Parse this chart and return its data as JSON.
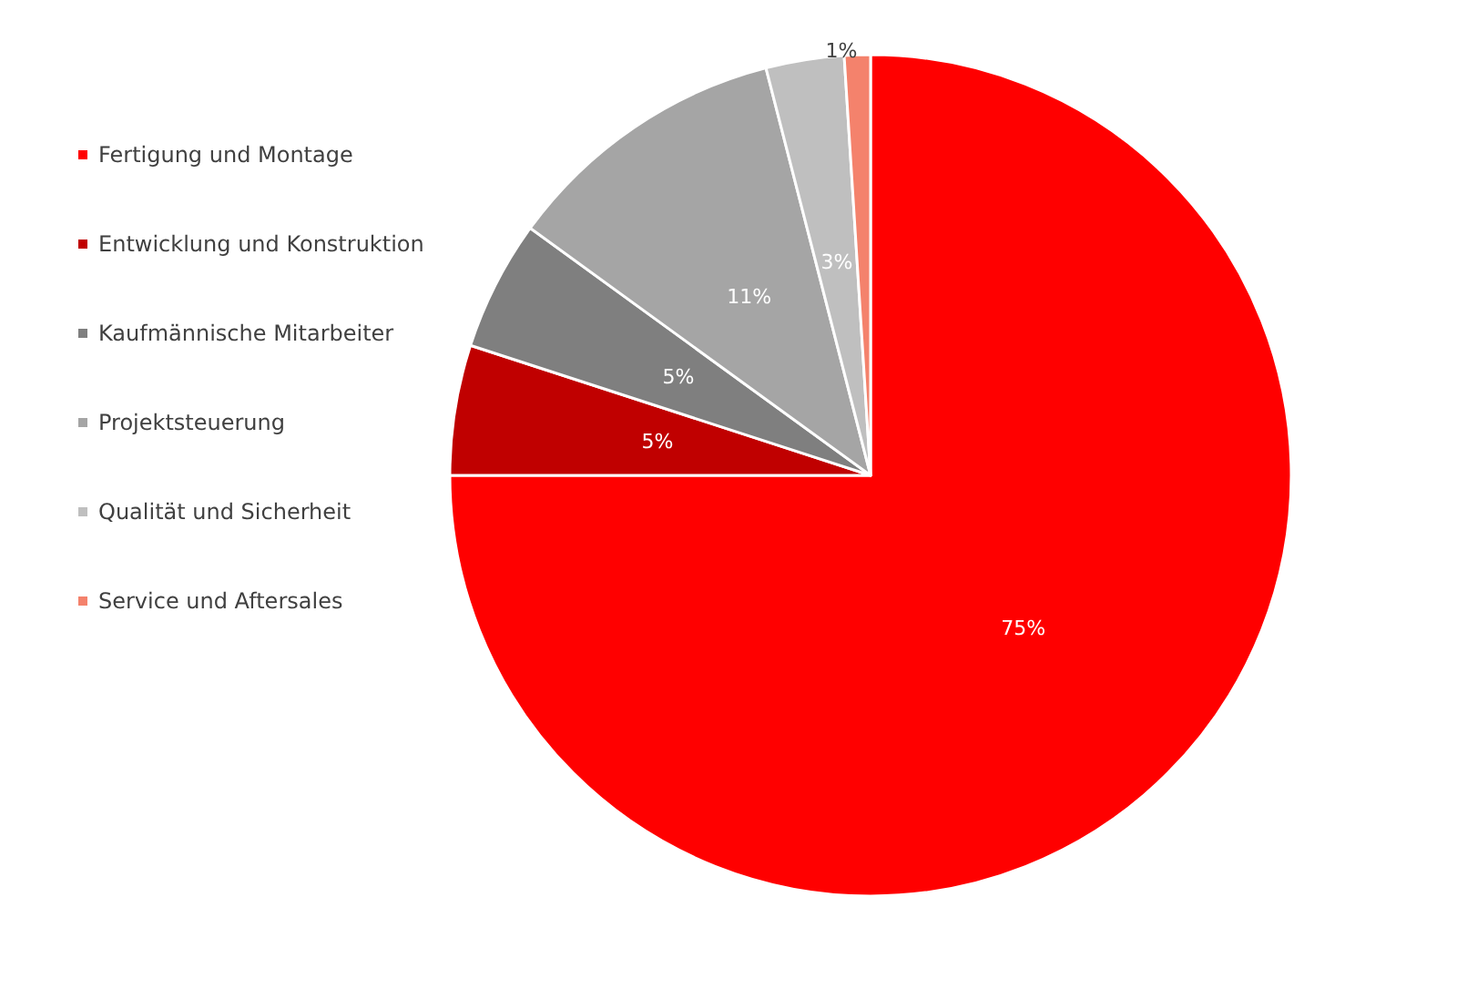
{
  "chart_data": {
    "type": "pie",
    "categories": [
      "Fertigung und Montage",
      "Entwicklung und Konstruktion",
      "Kaufmännische Mitarbeiter",
      "Projektsteuerung",
      "Qualität und Sicherheit",
      "Service und Aftersales"
    ],
    "values": [
      75,
      5,
      5,
      11,
      3,
      1
    ],
    "value_labels": [
      "75%",
      "5%",
      "5%",
      "11%",
      "3%",
      "1%"
    ],
    "colors": [
      "#ff0000",
      "#c00000",
      "#7f7f7f",
      "#a5a5a5",
      "#bfbfbf",
      "#f4826c"
    ],
    "legend": "left"
  }
}
